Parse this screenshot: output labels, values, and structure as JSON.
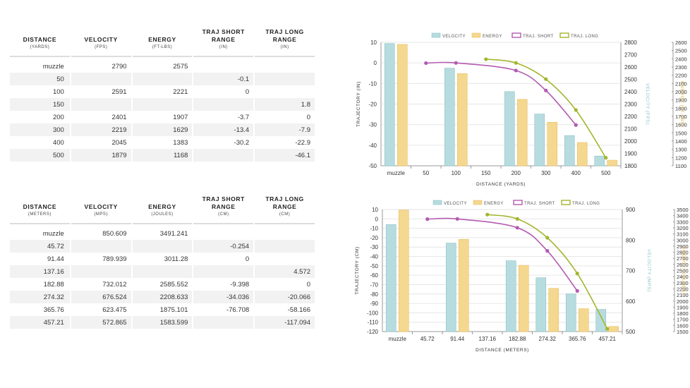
{
  "colors": {
    "velocity": "#b7dcdf",
    "velocity_stroke": "#8cc3c8",
    "energy": "#f5d88f",
    "energy_stroke": "#e6c066",
    "traj_short": "#b35bb0",
    "traj_long": "#a4b52e",
    "grid": "#e6e6e6",
    "axis_text": "#333333",
    "velocity_axis": "#8cc3c8",
    "energy_axis": "#e2b24a"
  },
  "tables": [
    {
      "headers": [
        {
          "title": "DISTANCE",
          "unit": "(YARDS)"
        },
        {
          "title": "VELOCITY",
          "unit": "(FPS)"
        },
        {
          "title": "ENERGY",
          "unit": "(FT-LBS)"
        },
        {
          "title": "TRAJ SHORT RANGE",
          "unit": "(IN)"
        },
        {
          "title": "TRAJ LONG RANGE",
          "unit": "(IN)"
        }
      ],
      "rows": [
        [
          "muzzle",
          "2790",
          "2575",
          "",
          ""
        ],
        [
          "50",
          "",
          "",
          "-0.1",
          ""
        ],
        [
          "100",
          "2591",
          "2221",
          "0",
          ""
        ],
        [
          "150",
          "",
          "",
          "",
          "1.8"
        ],
        [
          "200",
          "2401",
          "1907",
          "-3.7",
          "0"
        ],
        [
          "300",
          "2219",
          "1629",
          "-13.4",
          "-7.9"
        ],
        [
          "400",
          "2045",
          "1383",
          "-30.2",
          "-22.9"
        ],
        [
          "500",
          "1879",
          "1168",
          "",
          "-46.1"
        ]
      ]
    },
    {
      "headers": [
        {
          "title": "DISTANCE",
          "unit": "(METERS)"
        },
        {
          "title": "VELOCITY",
          "unit": "(MPS)"
        },
        {
          "title": "ENERGY",
          "unit": "(JOULES)"
        },
        {
          "title": "TRAJ SHORT RANGE",
          "unit": "(CM)"
        },
        {
          "title": "TRAJ LONG RANGE",
          "unit": "(CM)"
        }
      ],
      "rows": [
        [
          "muzzle",
          "850.609",
          "3491.241",
          "",
          ""
        ],
        [
          "45.72",
          "",
          "",
          "-0.254",
          ""
        ],
        [
          "91.44",
          "789.939",
          "3011.28",
          "0",
          ""
        ],
        [
          "137.16",
          "",
          "",
          "",
          "4.572"
        ],
        [
          "182.88",
          "732.012",
          "2585.552",
          "-9.398",
          "0"
        ],
        [
          "274.32",
          "676.524",
          "2208.633",
          "-34.036",
          "-20.066"
        ],
        [
          "365.76",
          "623.475",
          "1875.101",
          "-76.708",
          "-58.166"
        ],
        [
          "457.21",
          "572.865",
          "1583.599",
          "",
          "-117.094"
        ]
      ]
    }
  ],
  "chart_data": [
    {
      "type": "bar",
      "legend": [
        "VELOCITY",
        "ENERGY",
        "TRAJ. SHORT",
        "TRAJ. LONG"
      ],
      "categories": [
        "muzzle",
        "50",
        "100",
        "150",
        "200",
        "300",
        "400",
        "500"
      ],
      "xlabel": "DISTANCE (YARDS)",
      "ylabel_left": "TRAJECTORY (IN)",
      "ylabel_right1": "VELOCITY (FPS)",
      "ylabel_right2": "ENERGY (FT-LBS)",
      "ylim_traj": [
        -50,
        10
      ],
      "yticks_traj": [
        "10",
        "0",
        "-10",
        "-20",
        "-30",
        "-40",
        "-50"
      ],
      "ylim_vel": [
        1800,
        2800
      ],
      "yticks_vel": [
        "2800",
        "2700",
        "2600",
        "2500",
        "2400",
        "2300",
        "2200",
        "2100",
        "2000",
        "1900",
        "1800"
      ],
      "ylim_energy": [
        1100,
        2600
      ],
      "yticks_energy": [
        "2600",
        "2500",
        "2400",
        "2300",
        "2200",
        "2100",
        "2000",
        "1900",
        "1800",
        "1700",
        "1600",
        "1500",
        "1400",
        "1300",
        "1200",
        "1100"
      ],
      "series": [
        {
          "name": "VELOCITY",
          "kind": "bar",
          "axis": "vel",
          "values": [
            2790,
            null,
            2591,
            null,
            2401,
            2219,
            2045,
            1879
          ]
        },
        {
          "name": "ENERGY",
          "kind": "bar",
          "axis": "energy",
          "values": [
            2575,
            null,
            2221,
            null,
            1907,
            1629,
            1383,
            1168
          ]
        },
        {
          "name": "TRAJ. SHORT",
          "kind": "line",
          "axis": "traj",
          "values": [
            null,
            -0.1,
            0,
            null,
            -3.7,
            -13.4,
            -30.2,
            null
          ]
        },
        {
          "name": "TRAJ. LONG",
          "kind": "line",
          "axis": "traj",
          "values": [
            null,
            null,
            null,
            1.8,
            0,
            -7.9,
            -22.9,
            -46.1
          ]
        }
      ]
    },
    {
      "type": "bar",
      "legend": [
        "VELOCITY",
        "ENERGY",
        "TRAJ. SHORT",
        "TRAJ. LONG"
      ],
      "categories": [
        "muzzle",
        "45.72",
        "91.44",
        "137.16",
        "182.88",
        "274.32",
        "365.76",
        "457.21"
      ],
      "xlabel": "DISTANCE (METERS)",
      "ylabel_left": "TRAJECTORY (CM)",
      "ylabel_right1": "VELOCITY (MPS)",
      "ylabel_right2": "ENERGY (JOULES)",
      "ylim_traj": [
        -120,
        10
      ],
      "yticks_traj": [
        "10",
        "0",
        "-10",
        "-20",
        "-30",
        "-40",
        "-50",
        "-60",
        "-70",
        "-80",
        "-90",
        "-100",
        "-110",
        "-120"
      ],
      "ylim_vel": [
        500,
        900
      ],
      "yticks_vel": [
        "900",
        "800",
        "700",
        "600",
        "500"
      ],
      "ylim_energy": [
        1500,
        3500
      ],
      "yticks_energy": [
        "3500",
        "3400",
        "3300",
        "3200",
        "3100",
        "3000",
        "2900",
        "2800",
        "2700",
        "2600",
        "2500",
        "2400",
        "2300",
        "2200",
        "2100",
        "2000",
        "1900",
        "1800",
        "1700",
        "1600",
        "1500"
      ],
      "series": [
        {
          "name": "VELOCITY",
          "kind": "bar",
          "axis": "vel",
          "values": [
            850.609,
            null,
            789.939,
            null,
            732.012,
            676.524,
            623.475,
            572.865
          ]
        },
        {
          "name": "ENERGY",
          "kind": "bar",
          "axis": "energy",
          "values": [
            3491.241,
            null,
            3011.28,
            null,
            2585.552,
            2208.633,
            1875.101,
            1583.599
          ]
        },
        {
          "name": "TRAJ. SHORT",
          "kind": "line",
          "axis": "traj",
          "values": [
            null,
            -0.254,
            0,
            null,
            -9.398,
            -34.036,
            -76.708,
            null
          ]
        },
        {
          "name": "TRAJ. LONG",
          "kind": "line",
          "axis": "traj",
          "values": [
            null,
            null,
            null,
            4.572,
            0,
            -20.066,
            -58.166,
            -117.094
          ]
        }
      ]
    }
  ]
}
